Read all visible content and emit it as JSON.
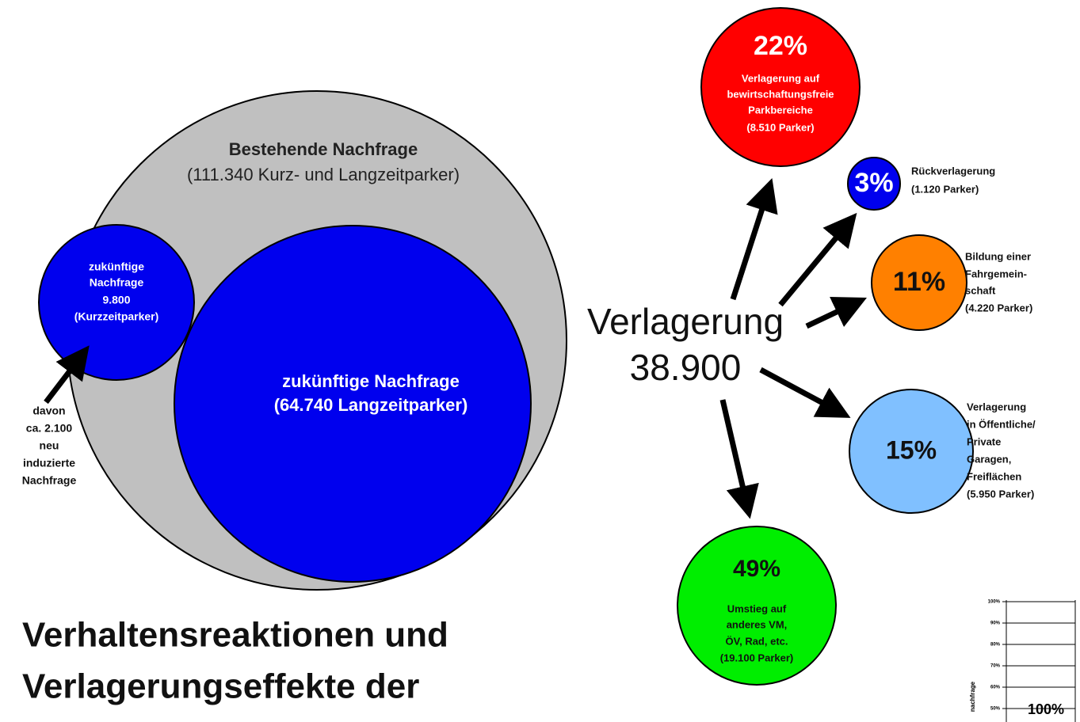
{
  "left": {
    "existing": {
      "lines": [
        "Bestehende Nachfrage",
        "(111.340 Kurz- und Langzeitparker)"
      ]
    },
    "short_term": {
      "lines": [
        "zukünftige",
        "Nachfrage",
        "9.800",
        "(Kurzzeitparker)"
      ]
    },
    "long_term": {
      "lines": [
        "zukünftige Nachfrage",
        "(64.740 Langzeitparker)"
      ]
    },
    "induced": {
      "lines": [
        "davon",
        "ca. 2.100",
        "neu",
        "induzierte",
        "Nachfrage"
      ]
    }
  },
  "title": {
    "lines": [
      "Verhaltensreaktionen und",
      "Verlagerungseffekte der"
    ]
  },
  "center": {
    "lines": [
      "Verlagerung",
      "38.900"
    ]
  },
  "effects": [
    {
      "percent": "22%",
      "lines": [
        "Verlagerung auf",
        "bewirtschaftungsfreie",
        "Parkbereiche",
        "(8.510 Parker)"
      ]
    },
    {
      "percent": "3%",
      "lines": [
        "Rückverlagerung",
        "(1.120 Parker)"
      ]
    },
    {
      "percent": "11%",
      "lines": [
        "Bildung einer",
        "Fahrgemein-",
        "schaft",
        "(4.220 Parker)"
      ]
    },
    {
      "percent": "15%",
      "lines": [
        "Verlagerung",
        "in Öffentliche/",
        "Private",
        "Garagen,",
        "Freiflächen",
        "(5.950 Parker)"
      ]
    },
    {
      "percent": "49%",
      "lines": [
        "Umstieg auf",
        "anderes VM,",
        "ÖV, Rad, etc.",
        "(19.100 Parker)"
      ]
    }
  ],
  "inset": {
    "ticks": [
      "100%",
      "90%",
      "80%",
      "70%",
      "60%",
      "50%"
    ],
    "axis_label": "nachfrage",
    "bar_label": "100%"
  }
}
